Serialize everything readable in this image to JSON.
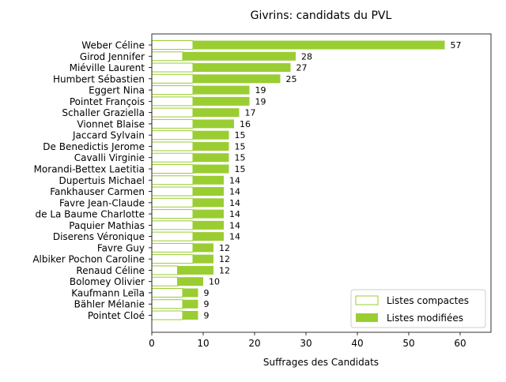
{
  "chart_data": {
    "type": "bar",
    "orientation": "horizontal",
    "stacked": true,
    "title": "Givrins: candidats du PVL",
    "xlabel": "Suffrages des Candidats",
    "ylabel": "",
    "xlim": [
      0,
      66
    ],
    "xticks": [
      0,
      10,
      20,
      30,
      40,
      50,
      60
    ],
    "grid": false,
    "legend_position": "lower-right",
    "categories": [
      "Weber Céline",
      "Girod Jennifer",
      "Miéville Laurent",
      "Humbert Sébastien",
      "Eggert Nina",
      "Pointet François",
      "Schaller Graziella",
      "Vionnet Blaise",
      "Jaccard Sylvain",
      "De Benedictis Jerome",
      "Cavalli Virginie",
      "Morandi-Bettex Laetitia",
      "Dupertuis Michael",
      "Fankhauser Carmen",
      "Favre Jean-Claude",
      "de La Baume Charlotte",
      "Paquier Mathias",
      "Diserens Véronique",
      "Favre Guy",
      "Albiker Pochon Caroline",
      "Renaud Céline",
      "Bolomey Olivier",
      "Kaufmann Leïla",
      "Bähler Mélanie",
      "Pointet Cloé"
    ],
    "series": [
      {
        "name": "Listes compactes",
        "color": "#9acd32",
        "style": "outline",
        "values": [
          8,
          6,
          8,
          8,
          8,
          8,
          8,
          8,
          8,
          8,
          8,
          8,
          8,
          8,
          8,
          8,
          8,
          8,
          8,
          8,
          5,
          5,
          6,
          6,
          6
        ]
      },
      {
        "name": "Listes modifiées",
        "color": "#9acd32",
        "style": "filled",
        "values": [
          49,
          22,
          19,
          17,
          11,
          11,
          9,
          8,
          7,
          7,
          7,
          7,
          6,
          6,
          6,
          6,
          6,
          6,
          4,
          4,
          7,
          5,
          3,
          3,
          3
        ]
      }
    ],
    "totals": [
      57,
      28,
      27,
      25,
      19,
      19,
      17,
      16,
      15,
      15,
      15,
      15,
      14,
      14,
      14,
      14,
      14,
      14,
      12,
      12,
      12,
      10,
      9,
      9,
      9
    ]
  }
}
